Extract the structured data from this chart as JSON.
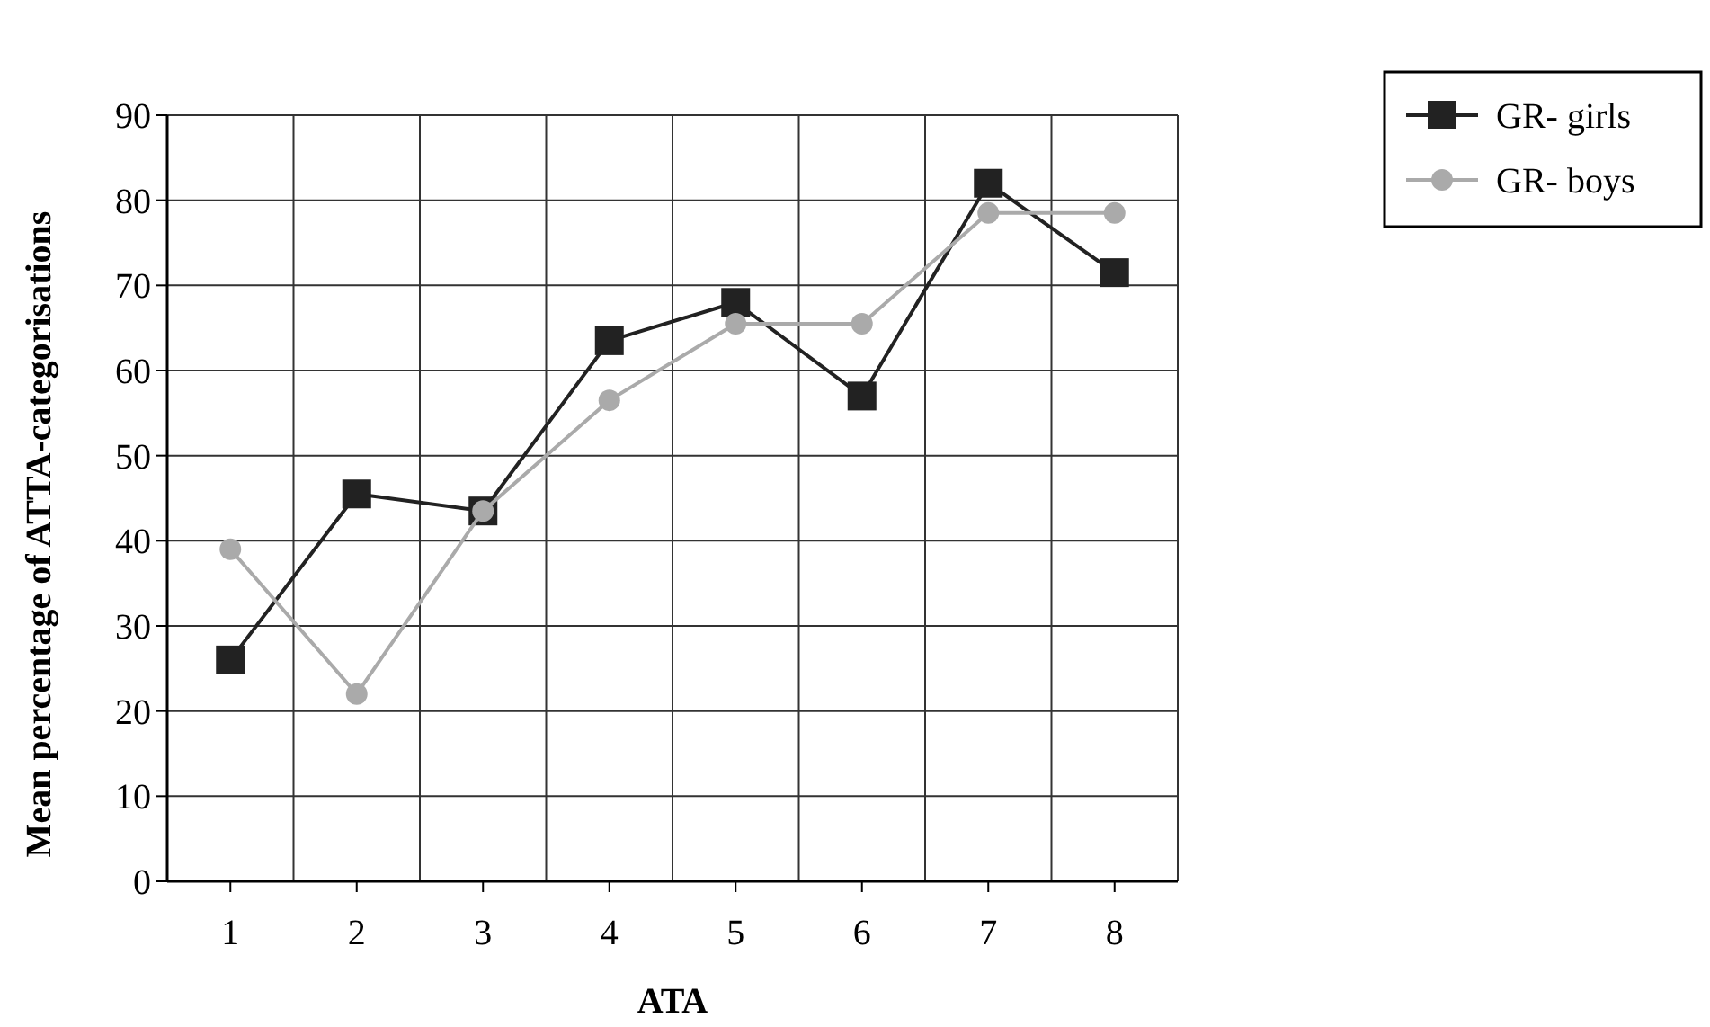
{
  "chart_data": {
    "type": "line",
    "xlabel": "ATA",
    "ylabel": "Mean percentage of ATTA-categorisations",
    "categories": [
      "1",
      "2",
      "3",
      "4",
      "5",
      "6",
      "7",
      "8"
    ],
    "series": [
      {
        "name": "GR- girls",
        "color": "#222222",
        "marker": "square",
        "values": [
          26,
          45.5,
          43.5,
          63.5,
          68,
          57,
          82,
          71.5
        ]
      },
      {
        "name": "GR- boys",
        "color": "#aaaaaa",
        "marker": "circle",
        "values": [
          39,
          22,
          43.5,
          56.5,
          65.5,
          65.5,
          78.5,
          78.5
        ]
      }
    ],
    "ylim": [
      0,
      90
    ],
    "yticks": [
      0,
      10,
      20,
      30,
      40,
      50,
      60,
      70,
      80,
      90
    ],
    "grid": true,
    "legend": "top right"
  }
}
